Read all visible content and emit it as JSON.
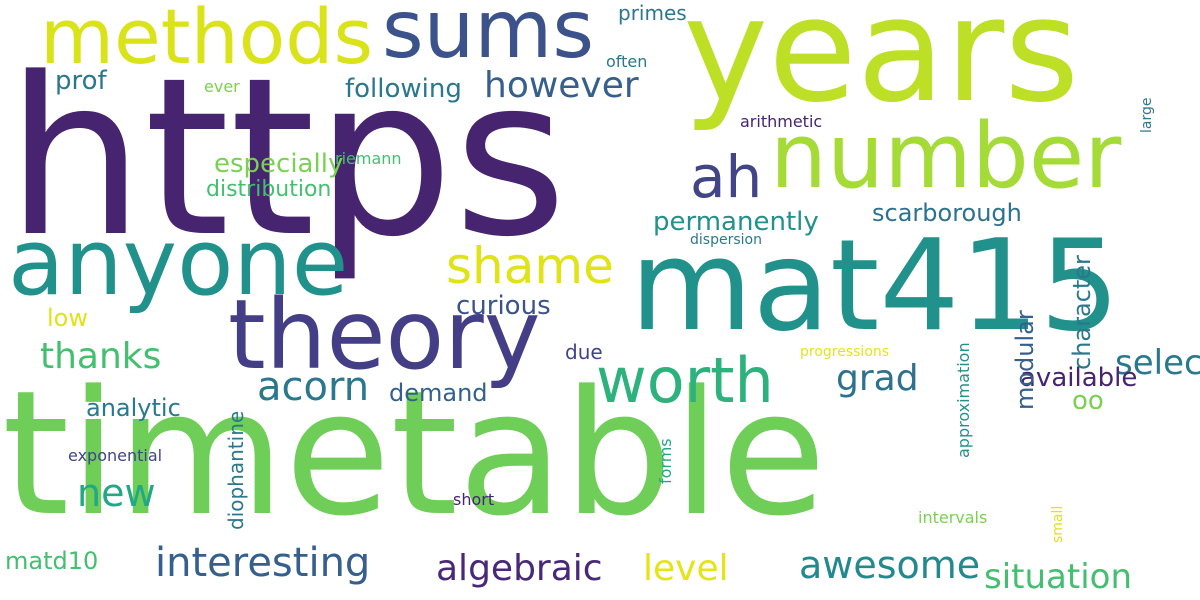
{
  "palette": {
    "dark_purple": "#46246f",
    "indigo": "#414487",
    "slate_blue": "#355f8d",
    "steel_blue": "#2a788e",
    "teal": "#21918c",
    "green_teal": "#22a884",
    "green": "#44bf70",
    "light_green": "#7ad151",
    "lime": "#bddf26",
    "yellow": "#fde725"
  },
  "words": [
    {
      "text": "timetable"
    },
    {
      "text": "https"
    },
    {
      "text": "years"
    },
    {
      "text": "mat415"
    },
    {
      "text": "anyone"
    },
    {
      "text": "number"
    },
    {
      "text": "theory"
    },
    {
      "text": "sums"
    },
    {
      "text": "methods"
    },
    {
      "text": "worth"
    },
    {
      "text": "shame"
    },
    {
      "text": "ah"
    },
    {
      "text": "interesting"
    },
    {
      "text": "acorn"
    },
    {
      "text": "algebraic"
    },
    {
      "text": "awesome"
    },
    {
      "text": "situation"
    },
    {
      "text": "level"
    },
    {
      "text": "thanks"
    },
    {
      "text": "grad"
    },
    {
      "text": "new"
    },
    {
      "text": "however"
    },
    {
      "text": "permanently"
    },
    {
      "text": "scarborough"
    },
    {
      "text": "selection"
    },
    {
      "text": "oo"
    },
    {
      "text": "curious"
    },
    {
      "text": "available"
    },
    {
      "text": "prof"
    },
    {
      "text": "demand"
    },
    {
      "text": "following"
    },
    {
      "text": "matd10"
    },
    {
      "text": "analytic"
    },
    {
      "text": "due"
    },
    {
      "text": "especially"
    },
    {
      "text": "distribution"
    },
    {
      "text": "low"
    },
    {
      "text": "primes"
    },
    {
      "text": "often"
    },
    {
      "text": "ever"
    },
    {
      "text": "arithmetic"
    },
    {
      "text": "riemann"
    },
    {
      "text": "dispersion"
    },
    {
      "text": "progressions"
    },
    {
      "text": "exponential"
    },
    {
      "text": "short"
    },
    {
      "text": "intervals"
    },
    {
      "text": "modular"
    },
    {
      "text": "character"
    },
    {
      "text": "diophantine"
    },
    {
      "text": "large"
    },
    {
      "text": "forms"
    },
    {
      "text": "approximation"
    },
    {
      "text": "small"
    }
  ]
}
